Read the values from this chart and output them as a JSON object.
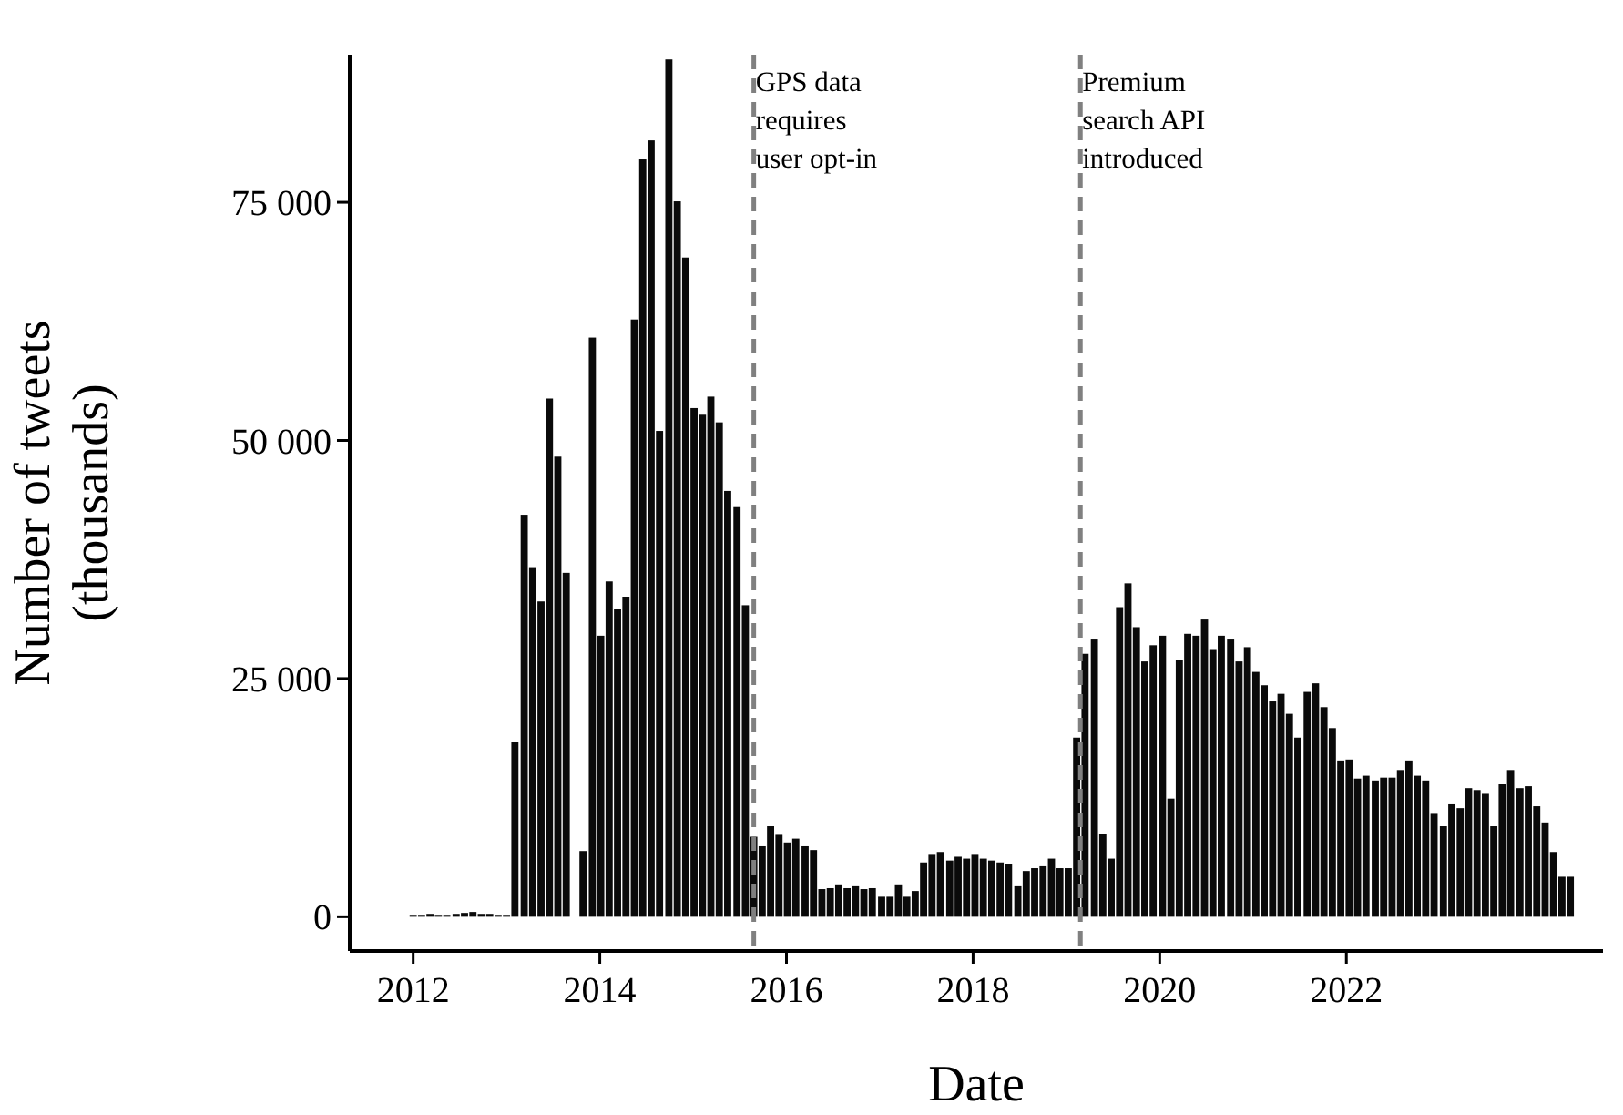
{
  "chart_data": {
    "type": "bar",
    "xlabel": "Date",
    "ylabel": "Number of tweets (thousands)",
    "x": [
      2012.0,
      2012.09,
      2012.18,
      2012.27,
      2012.36,
      2012.46,
      2012.55,
      2012.64,
      2012.73,
      2012.82,
      2012.91,
      2013.0,
      2013.09,
      2013.19,
      2013.28,
      2013.37,
      2013.46,
      2013.55,
      2013.64,
      2013.73,
      2013.82,
      2013.92,
      2014.01,
      2014.1,
      2014.19,
      2014.28,
      2014.37,
      2014.46,
      2014.55,
      2014.64,
      2014.74,
      2014.83,
      2014.92,
      2015.01,
      2015.1,
      2015.19,
      2015.28,
      2015.37,
      2015.47,
      2015.56,
      2015.65,
      2015.74,
      2015.83,
      2015.92,
      2016.01,
      2016.1,
      2016.2,
      2016.29,
      2016.38,
      2016.47,
      2016.56,
      2016.65,
      2016.74,
      2016.83,
      2016.92,
      2017.02,
      2017.11,
      2017.2,
      2017.29,
      2017.38,
      2017.47,
      2017.56,
      2017.65,
      2017.75,
      2017.84,
      2017.93,
      2018.02,
      2018.11,
      2018.2,
      2018.29,
      2018.38,
      2018.48,
      2018.57,
      2018.66,
      2018.75,
      2018.84,
      2018.93,
      2019.02,
      2019.11,
      2019.2,
      2019.3,
      2019.39,
      2019.48,
      2019.57,
      2019.66,
      2019.75,
      2019.84,
      2019.93,
      2020.03,
      2020.12,
      2020.21,
      2020.3,
      2020.39,
      2020.48,
      2020.57,
      2020.66,
      2020.76,
      2020.85,
      2020.94,
      2021.03,
      2021.12,
      2021.21,
      2021.3,
      2021.39,
      2021.48,
      2021.58,
      2021.67,
      2021.76,
      2021.85,
      2021.94,
      2022.03,
      2022.12,
      2022.21,
      2022.31,
      2022.4,
      2022.49,
      2022.58,
      2022.67,
      2022.76,
      2022.85,
      2022.94,
      2023.04,
      2023.13,
      2023.22,
      2023.31,
      2023.4,
      2023.49,
      2023.58,
      2023.67,
      2023.76,
      2023.86,
      2023.95,
      2024.04,
      2024.13,
      2024.22,
      2024.31,
      2024.4
    ],
    "series": [
      {
        "color": "#0a0a0a",
        "values": [
          200,
          200,
          300,
          200,
          200,
          300,
          400,
          500,
          300,
          300,
          200,
          200,
          18300,
          42200,
          36700,
          33100,
          54400,
          48300,
          36100,
          null,
          6900,
          60800,
          29500,
          35200,
          32300,
          33600,
          62700,
          79500,
          81500,
          51000,
          90000,
          75100,
          69200,
          53400,
          52700,
          54600,
          51900,
          44700,
          43000,
          32700,
          8400,
          7400,
          9500,
          8600,
          7800,
          8200,
          7400,
          7000,
          2900,
          3000,
          3400,
          3000,
          3200,
          2900,
          3000,
          2100,
          2100,
          3400,
          2100,
          2700,
          5700,
          6500,
          6800,
          5900,
          6300,
          6100,
          6500,
          6100,
          5900,
          5700,
          5500,
          3200,
          4800,
          5100,
          5300,
          6100,
          5100,
          5100,
          18800,
          27600,
          29100,
          8700,
          6100,
          32500,
          35000,
          30400,
          26800,
          28500,
          29500,
          12400,
          27000,
          29700,
          29500,
          31200,
          28100,
          29500,
          29100,
          26800,
          28300,
          25700,
          24300,
          22600,
          23400,
          21300,
          18800,
          23600,
          24500,
          22000,
          19800,
          16400,
          16500,
          14500,
          14800,
          14300,
          14600,
          14600,
          15400,
          16400,
          14800,
          14300,
          10800,
          9500,
          11800,
          11400,
          13500,
          13300,
          12900,
          9500,
          13900,
          15400,
          13500,
          13700,
          11600,
          9900,
          6800,
          4200,
          4200
        ]
      }
    ],
    "xlim": [
      2011.32,
      2024.75
    ],
    "xticks": [
      2012,
      2014,
      2016,
      2018,
      2020,
      2022
    ],
    "ylim": [
      -3600,
      90500
    ],
    "yticks": [
      0,
      {
        "value": 25000,
        "label": "25 000"
      },
      {
        "value": 50000,
        "label": "50 000"
      },
      {
        "value": 75000,
        "label": "75 000"
      }
    ],
    "grid": false,
    "ref_lines": [
      {
        "axis": "x",
        "value": 2015.65,
        "label": "GPS data requires user opt-in",
        "color": "#808080",
        "line_style": "dashed"
      },
      {
        "axis": "x",
        "value": 2019.15,
        "label": "Premium search API introduced",
        "color": "#808080",
        "line_style": "dashed"
      }
    ]
  }
}
